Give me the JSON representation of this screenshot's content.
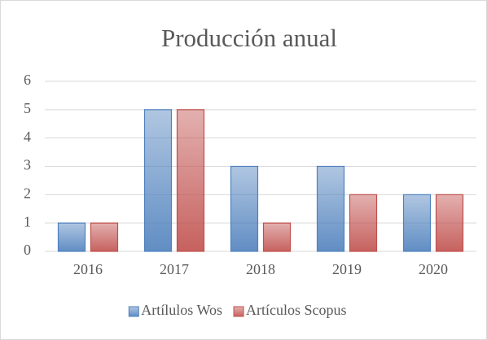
{
  "chart_data": {
    "type": "bar",
    "title": "Producción anual",
    "categories": [
      "2016",
      "2017",
      "2018",
      "2019",
      "2020"
    ],
    "series": [
      {
        "name": "Artílulos Wos",
        "color": "#4f81bd",
        "values": [
          1,
          5,
          3,
          3,
          2
        ]
      },
      {
        "name": "Artículos Scopus",
        "color": "#c0504d",
        "values": [
          1,
          5,
          1,
          2,
          2
        ]
      }
    ],
    "ylim": [
      0,
      6
    ],
    "yticks": [
      0,
      1,
      2,
      3,
      4,
      5,
      6
    ],
    "grid": true,
    "legend": "bottom"
  }
}
